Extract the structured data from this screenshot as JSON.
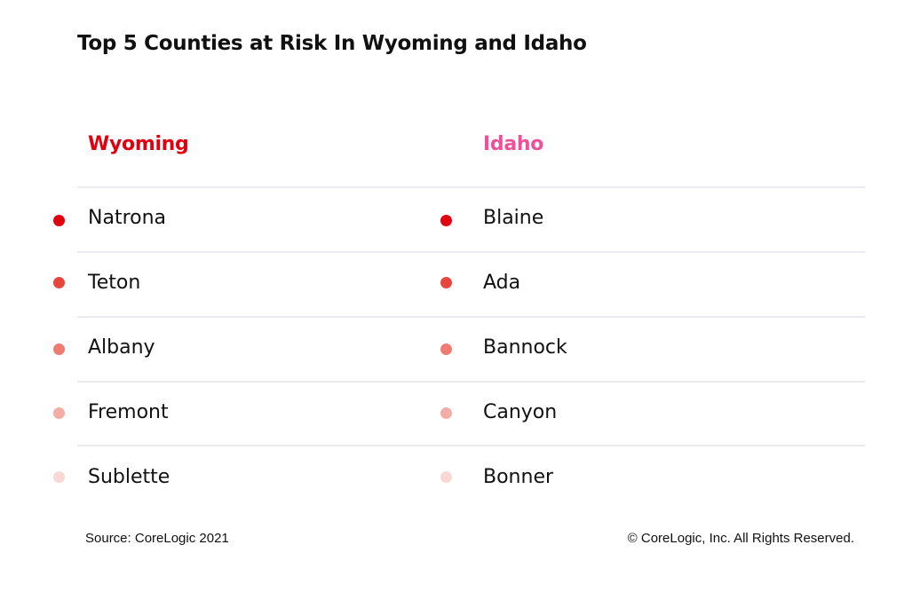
{
  "chart_data": {
    "type": "table",
    "title": "Top 5 Counties at Risk In Wyoming and Idaho",
    "columns": [
      {
        "name": "Wyoming",
        "color": "#e0000f",
        "counties": [
          "Natrona",
          "Teton",
          "Albany",
          "Fremont",
          "Sublette"
        ]
      },
      {
        "name": "Idaho",
        "color": "#f0509a",
        "counties": [
          "Blaine",
          "Ada",
          "Bannock",
          "Canyon",
          "Bonner"
        ]
      }
    ],
    "rank_colors": [
      "#e0000f",
      "#e8463c",
      "#ef7b72",
      "#f4ada6",
      "#f9d8d4"
    ],
    "footer": {
      "source": "Source: CoreLogic 2021",
      "copyright": "© CoreLogic, Inc. All Rights Reserved."
    }
  }
}
